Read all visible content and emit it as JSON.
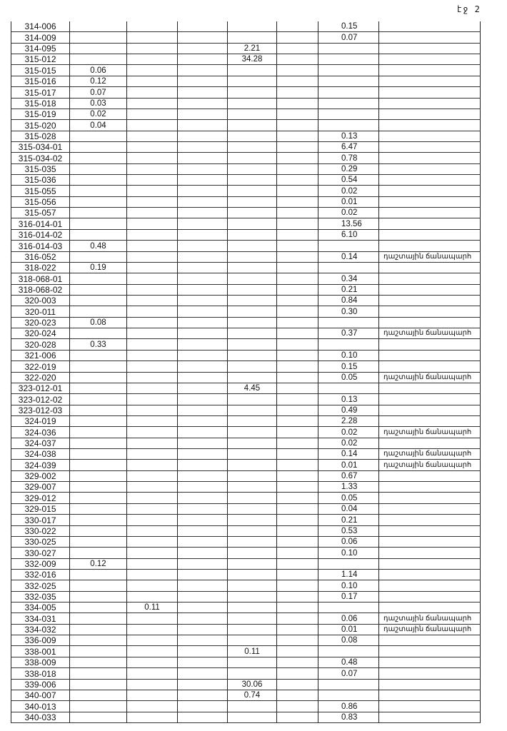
{
  "page_number": "էջ 2",
  "note_text": "դաշտային ճանապարհ",
  "rows": [
    {
      "code": "314-006",
      "c1": "",
      "c2": "",
      "c4": "",
      "c6": "0.15",
      "note": ""
    },
    {
      "code": "314-009",
      "c1": "",
      "c2": "",
      "c4": "",
      "c6": "0.07",
      "note": ""
    },
    {
      "code": "314-095",
      "c1": "",
      "c2": "",
      "c4": "2.21",
      "c6": "",
      "note": ""
    },
    {
      "code": "315-012",
      "c1": "",
      "c2": "",
      "c4": "34.28",
      "c6": "",
      "note": ""
    },
    {
      "code": "315-015",
      "c1": "0.06",
      "c2": "",
      "c4": "",
      "c6": "",
      "note": ""
    },
    {
      "code": "315-016",
      "c1": "0.12",
      "c2": "",
      "c4": "",
      "c6": "",
      "note": ""
    },
    {
      "code": "315-017",
      "c1": "0.07",
      "c2": "",
      "c4": "",
      "c6": "",
      "note": ""
    },
    {
      "code": "315-018",
      "c1": "0.03",
      "c2": "",
      "c4": "",
      "c6": "",
      "note": ""
    },
    {
      "code": "315-019",
      "c1": "0.02",
      "c2": "",
      "c4": "",
      "c6": "",
      "note": ""
    },
    {
      "code": "315-020",
      "c1": "0.04",
      "c2": "",
      "c4": "",
      "c6": "",
      "note": ""
    },
    {
      "code": "315-028",
      "c1": "",
      "c2": "",
      "c4": "",
      "c6": "0.13",
      "note": ""
    },
    {
      "code": "315-034-01",
      "c1": "",
      "c2": "",
      "c4": "",
      "c6": "6.47",
      "note": ""
    },
    {
      "code": "315-034-02",
      "c1": "",
      "c2": "",
      "c4": "",
      "c6": "0.78",
      "note": ""
    },
    {
      "code": "315-035",
      "c1": "",
      "c2": "",
      "c4": "",
      "c6": "0.29",
      "note": ""
    },
    {
      "code": "315-036",
      "c1": "",
      "c2": "",
      "c4": "",
      "c6": "0.54",
      "note": ""
    },
    {
      "code": "315-055",
      "c1": "",
      "c2": "",
      "c4": "",
      "c6": "0.02",
      "note": ""
    },
    {
      "code": "315-056",
      "c1": "",
      "c2": "",
      "c4": "",
      "c6": "0.01",
      "note": ""
    },
    {
      "code": "315-057",
      "c1": "",
      "c2": "",
      "c4": "",
      "c6": "0.02",
      "note": ""
    },
    {
      "code": "316-014-01",
      "c1": "",
      "c2": "",
      "c4": "",
      "c6": "13.56",
      "note": ""
    },
    {
      "code": "316-014-02",
      "c1": "",
      "c2": "",
      "c4": "",
      "c6": "6.10",
      "note": ""
    },
    {
      "code": "316-014-03",
      "c1": "0.48",
      "c2": "",
      "c4": "",
      "c6": "",
      "note": ""
    },
    {
      "code": "316-052",
      "c1": "",
      "c2": "",
      "c4": "",
      "c6": "0.14",
      "note": "դաշտային ճանապարհ"
    },
    {
      "code": "318-022",
      "c1": "0.19",
      "c2": "",
      "c4": "",
      "c6": "",
      "note": ""
    },
    {
      "code": "318-068-01",
      "c1": "",
      "c2": "",
      "c4": "",
      "c6": "0.34",
      "note": ""
    },
    {
      "code": "318-068-02",
      "c1": "",
      "c2": "",
      "c4": "",
      "c6": "0.21",
      "note": ""
    },
    {
      "code": "320-003",
      "c1": "",
      "c2": "",
      "c4": "",
      "c6": "0.84",
      "note": ""
    },
    {
      "code": "320-011",
      "c1": "",
      "c2": "",
      "c4": "",
      "c6": "0.30",
      "note": ""
    },
    {
      "code": "320-023",
      "c1": "0.08",
      "c2": "",
      "c4": "",
      "c6": "",
      "note": ""
    },
    {
      "code": "320-024",
      "c1": "",
      "c2": "",
      "c4": "",
      "c6": "0.37",
      "note": "դաշտային ճանապարհ"
    },
    {
      "code": "320-028",
      "c1": "0.33",
      "c2": "",
      "c4": "",
      "c6": "",
      "note": ""
    },
    {
      "code": "321-006",
      "c1": "",
      "c2": "",
      "c4": "",
      "c6": "0.10",
      "note": ""
    },
    {
      "code": "322-019",
      "c1": "",
      "c2": "",
      "c4": "",
      "c6": "0.15",
      "note": ""
    },
    {
      "code": "322-020",
      "c1": "",
      "c2": "",
      "c4": "",
      "c6": "0.05",
      "note": "դաշտային ճանապարհ"
    },
    {
      "code": "323-012-01",
      "c1": "",
      "c2": "",
      "c4": "4.45",
      "c6": "",
      "note": ""
    },
    {
      "code": "323-012-02",
      "c1": "",
      "c2": "",
      "c4": "",
      "c6": "0.13",
      "note": ""
    },
    {
      "code": "323-012-03",
      "c1": "",
      "c2": "",
      "c4": "",
      "c6": "0.49",
      "note": ""
    },
    {
      "code": "324-019",
      "c1": "",
      "c2": "",
      "c4": "",
      "c6": "2.28",
      "note": ""
    },
    {
      "code": "324-036",
      "c1": "",
      "c2": "",
      "c4": "",
      "c6": "0.02",
      "note": "դաշտային ճանապարհ"
    },
    {
      "code": "324-037",
      "c1": "",
      "c2": "",
      "c4": "",
      "c6": "0.02",
      "note": ""
    },
    {
      "code": "324-038",
      "c1": "",
      "c2": "",
      "c4": "",
      "c6": "0.14",
      "note": "դաշտային ճանապարհ"
    },
    {
      "code": "324-039",
      "c1": "",
      "c2": "",
      "c4": "",
      "c6": "0.01",
      "note": "դաշտային ճանապարհ"
    },
    {
      "code": "329-002",
      "c1": "",
      "c2": "",
      "c4": "",
      "c6": "0.67",
      "note": ""
    },
    {
      "code": "329-007",
      "c1": "",
      "c2": "",
      "c4": "",
      "c6": "1.33",
      "note": ""
    },
    {
      "code": "329-012",
      "c1": "",
      "c2": "",
      "c4": "",
      "c6": "0.05",
      "note": ""
    },
    {
      "code": "329-015",
      "c1": "",
      "c2": "",
      "c4": "",
      "c6": "0.04",
      "note": ""
    },
    {
      "code": "330-017",
      "c1": "",
      "c2": "",
      "c4": "",
      "c6": "0.21",
      "note": ""
    },
    {
      "code": "330-022",
      "c1": "",
      "c2": "",
      "c4": "",
      "c6": "0.53",
      "note": ""
    },
    {
      "code": "330-025",
      "c1": "",
      "c2": "",
      "c4": "",
      "c6": "0.06",
      "note": ""
    },
    {
      "code": "330-027",
      "c1": "",
      "c2": "",
      "c4": "",
      "c6": "0.10",
      "note": ""
    },
    {
      "code": "332-009",
      "c1": "0.12",
      "c2": "",
      "c4": "",
      "c6": "",
      "note": ""
    },
    {
      "code": "332-016",
      "c1": "",
      "c2": "",
      "c4": "",
      "c6": "1.14",
      "note": ""
    },
    {
      "code": "332-025",
      "c1": "",
      "c2": "",
      "c4": "",
      "c6": "0.10",
      "note": ""
    },
    {
      "code": "332-035",
      "c1": "",
      "c2": "",
      "c4": "",
      "c6": "0.17",
      "note": ""
    },
    {
      "code": "334-005",
      "c1": "",
      "c2": "0.11",
      "c4": "",
      "c6": "",
      "note": ""
    },
    {
      "code": "334-031",
      "c1": "",
      "c2": "",
      "c4": "",
      "c6": "0.06",
      "note": "դաշտային ճանապարհ"
    },
    {
      "code": "334-032",
      "c1": "",
      "c2": "",
      "c4": "",
      "c6": "0.01",
      "note": "դաշտային ճանապարհ"
    },
    {
      "code": "336-009",
      "c1": "",
      "c2": "",
      "c4": "",
      "c6": "0.08",
      "note": ""
    },
    {
      "code": "338-001",
      "c1": "",
      "c2": "",
      "c4": "0.11",
      "c6": "",
      "note": ""
    },
    {
      "code": "338-009",
      "c1": "",
      "c2": "",
      "c4": "",
      "c6": "0.48",
      "note": ""
    },
    {
      "code": "338-018",
      "c1": "",
      "c2": "",
      "c4": "",
      "c6": "0.07",
      "note": ""
    },
    {
      "code": "339-006",
      "c1": "",
      "c2": "",
      "c4": "30.06",
      "c6": "",
      "note": ""
    },
    {
      "code": "340-007",
      "c1": "",
      "c2": "",
      "c4": "0.74",
      "c6": "",
      "note": ""
    },
    {
      "code": "340-013",
      "c1": "",
      "c2": "",
      "c4": "",
      "c6": "0.86",
      "note": ""
    },
    {
      "code": "340-033",
      "c1": "",
      "c2": "",
      "c4": "",
      "c6": "0.83",
      "note": ""
    }
  ]
}
